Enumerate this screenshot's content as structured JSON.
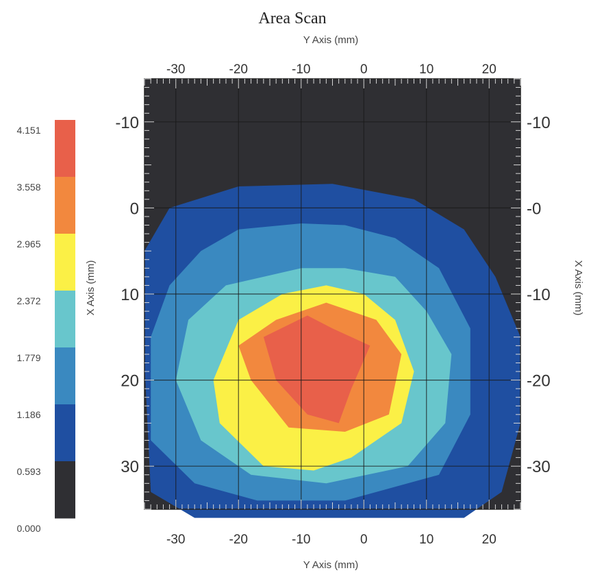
{
  "chart_data": {
    "type": "heatmap",
    "subtype": "filled-contour",
    "title": "Area Scan",
    "x_axis": {
      "label": "Y Axis (mm)",
      "range": [
        -35,
        25
      ],
      "ticks": [
        -30,
        -20,
        -10,
        0,
        10,
        20
      ],
      "tick_labels_bottom": [
        "-30",
        "-20",
        "-10",
        "0",
        "10",
        "20"
      ],
      "tick_labels_top": [
        "-30",
        "-20",
        "-10",
        "0",
        "10",
        "20"
      ]
    },
    "y_axis": {
      "label": "X Axis (mm)",
      "range": [
        -15,
        35
      ],
      "direction": "down",
      "ticks": [
        -10,
        0,
        10,
        20,
        30
      ],
      "tick_labels_left": [
        "-10",
        "0",
        "10",
        "20",
        "30"
      ],
      "tick_labels_right": [
        "-10",
        "-0",
        "-10",
        "-20",
        "-30"
      ]
    },
    "grid": true,
    "colorbar": {
      "placement": "left",
      "levels": [
        "4.151",
        "3.558",
        "2.965",
        "2.372",
        "1.779",
        "1.186",
        "0.593",
        "0.000"
      ],
      "colors": [
        "#e8604a",
        "#f2883e",
        "#fbf046",
        "#68c6cc",
        "#3a89c0",
        "#1f4fa1",
        "#2f2f33"
      ]
    },
    "contours": [
      {
        "level": "0.593",
        "color": "#1f4fa1",
        "points": [
          [
            -35,
            5
          ],
          [
            -31,
            0
          ],
          [
            -20,
            -2.5
          ],
          [
            -5,
            -2.8
          ],
          [
            8,
            -1
          ],
          [
            16,
            2.5
          ],
          [
            21,
            8
          ],
          [
            25,
            15
          ],
          [
            25,
            25
          ],
          [
            22,
            33
          ],
          [
            16,
            36
          ],
          [
            -5,
            36
          ],
          [
            -27,
            36
          ],
          [
            -34,
            33
          ],
          [
            -35,
            18
          ]
        ]
      },
      {
        "level": "1.186",
        "color": "#3a89c0",
        "points": [
          [
            -26,
            5
          ],
          [
            -20,
            2.5
          ],
          [
            -10,
            1.8
          ],
          [
            -3,
            2
          ],
          [
            5,
            3.5
          ],
          [
            12,
            7
          ],
          [
            17,
            14
          ],
          [
            17,
            24
          ],
          [
            12,
            31
          ],
          [
            -3,
            34
          ],
          [
            -17,
            34
          ],
          [
            -27,
            32
          ],
          [
            -34,
            27
          ],
          [
            -34,
            15
          ],
          [
            -31,
            9
          ]
        ]
      },
      {
        "level": "1.779",
        "color": "#68c6cc",
        "points": [
          [
            -22,
            9
          ],
          [
            -10,
            7
          ],
          [
            -3,
            7
          ],
          [
            5,
            8
          ],
          [
            10,
            12
          ],
          [
            14,
            17
          ],
          [
            13,
            25
          ],
          [
            7,
            30
          ],
          [
            -6,
            32
          ],
          [
            -18,
            31
          ],
          [
            -26,
            27
          ],
          [
            -30,
            20
          ],
          [
            -28,
            13
          ]
        ]
      },
      {
        "level": "2.372",
        "color": "#fbf046",
        "points": [
          [
            -13,
            10
          ],
          [
            -6,
            9
          ],
          [
            0,
            10
          ],
          [
            5,
            13
          ],
          [
            8,
            19
          ],
          [
            6,
            25
          ],
          [
            -2,
            29
          ],
          [
            -8,
            30.5
          ],
          [
            -16,
            30
          ],
          [
            -23,
            25
          ],
          [
            -24,
            20
          ],
          [
            -20,
            13
          ]
        ]
      },
      {
        "level": "2.965",
        "color": "#f2883e",
        "points": [
          [
            -14,
            13
          ],
          [
            -6,
            11
          ],
          [
            2,
            13
          ],
          [
            6,
            17
          ],
          [
            4,
            24
          ],
          [
            -3,
            26
          ],
          [
            -12,
            25.5
          ],
          [
            -18,
            20
          ],
          [
            -20,
            16
          ]
        ]
      },
      {
        "level": "3.558",
        "color": "#e8604a",
        "points": [
          [
            -16,
            15
          ],
          [
            -9,
            12.5
          ],
          [
            -5,
            14
          ],
          [
            1,
            16
          ],
          [
            -2,
            21
          ],
          [
            -4,
            25
          ],
          [
            -9,
            24
          ],
          [
            -14,
            20
          ]
        ]
      }
    ]
  }
}
